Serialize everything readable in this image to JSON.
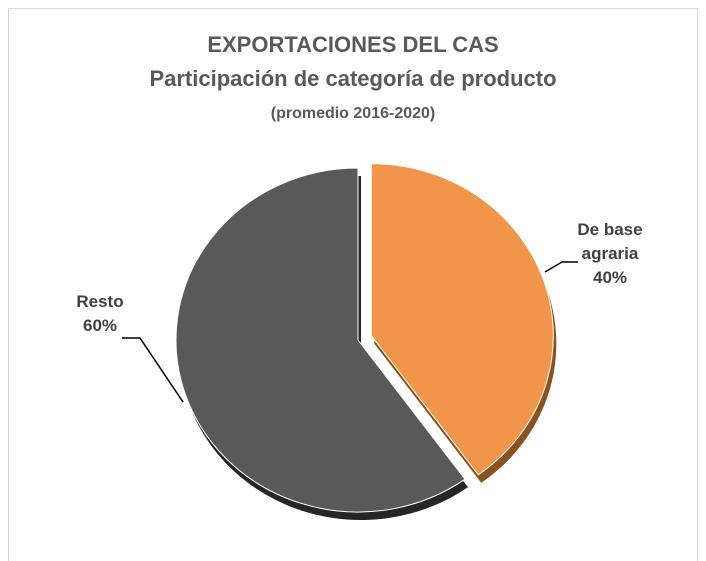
{
  "chart_data": {
    "type": "pie",
    "title": "EXPORTACIONES DEL CAS",
    "subtitle": "Participación de categoría de producto",
    "annotation": "(promedio 2016-2020)",
    "categories": [
      "De base agraria",
      "Resto"
    ],
    "values": [
      40,
      60
    ],
    "value_labels": [
      "40%",
      "60%"
    ],
    "colors": [
      "#f0954a",
      "#595959"
    ],
    "depth_colors": [
      "#8a5220",
      "#262626"
    ]
  }
}
